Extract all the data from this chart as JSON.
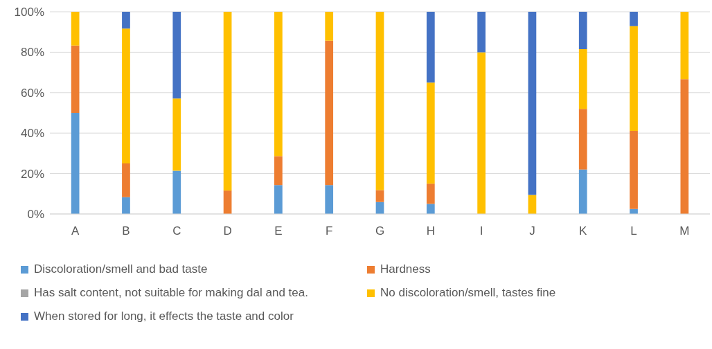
{
  "chart_data": {
    "type": "bar",
    "stacked": true,
    "categories": [
      "A",
      "B",
      "C",
      "D",
      "E",
      "F",
      "G",
      "H",
      "I",
      "J",
      "K",
      "L",
      "M"
    ],
    "series": [
      {
        "name": "Discoloration/smell and bad taste",
        "color": "#5b9bd5",
        "values": [
          50,
          8.3,
          21.4,
          0,
          14.3,
          14.3,
          5.9,
          5,
          0,
          0,
          22,
          2.5,
          0
        ]
      },
      {
        "name": "Hardness",
        "color": "#ed7d31",
        "values": [
          33.3,
          16.7,
          0,
          11.6,
          14.3,
          71.4,
          5.9,
          10,
          0,
          0,
          30,
          38.6,
          66.7
        ]
      },
      {
        "name": "Has salt content, not suitable for making dal and tea.",
        "color": "#a5a5a5",
        "values": [
          0,
          0,
          0,
          0,
          0,
          0,
          0,
          0,
          0,
          0,
          0,
          0,
          0
        ]
      },
      {
        "name": "No discoloration/smell, tastes fine",
        "color": "#ffc000",
        "values": [
          16.7,
          66.7,
          35.7,
          88.4,
          71.4,
          14.3,
          88.2,
          50,
          80,
          9.4,
          29.5,
          51.8,
          33.3
        ]
      },
      {
        "name": "When stored for long, it effects the taste and color",
        "color": "#4472c4",
        "values": [
          0,
          8.3,
          42.9,
          0,
          0,
          0,
          0,
          35,
          20,
          90.6,
          18.5,
          7.1,
          0
        ]
      }
    ],
    "ylim": [
      0,
      100
    ],
    "yticks": [
      {
        "value": 0,
        "label": "0%"
      },
      {
        "value": 20,
        "label": "20%"
      },
      {
        "value": 40,
        "label": "40%"
      },
      {
        "value": 60,
        "label": "60%"
      },
      {
        "value": 80,
        "label": "80%"
      },
      {
        "value": 100,
        "label": "100%"
      }
    ],
    "grid": "y",
    "legend": "bottom"
  }
}
